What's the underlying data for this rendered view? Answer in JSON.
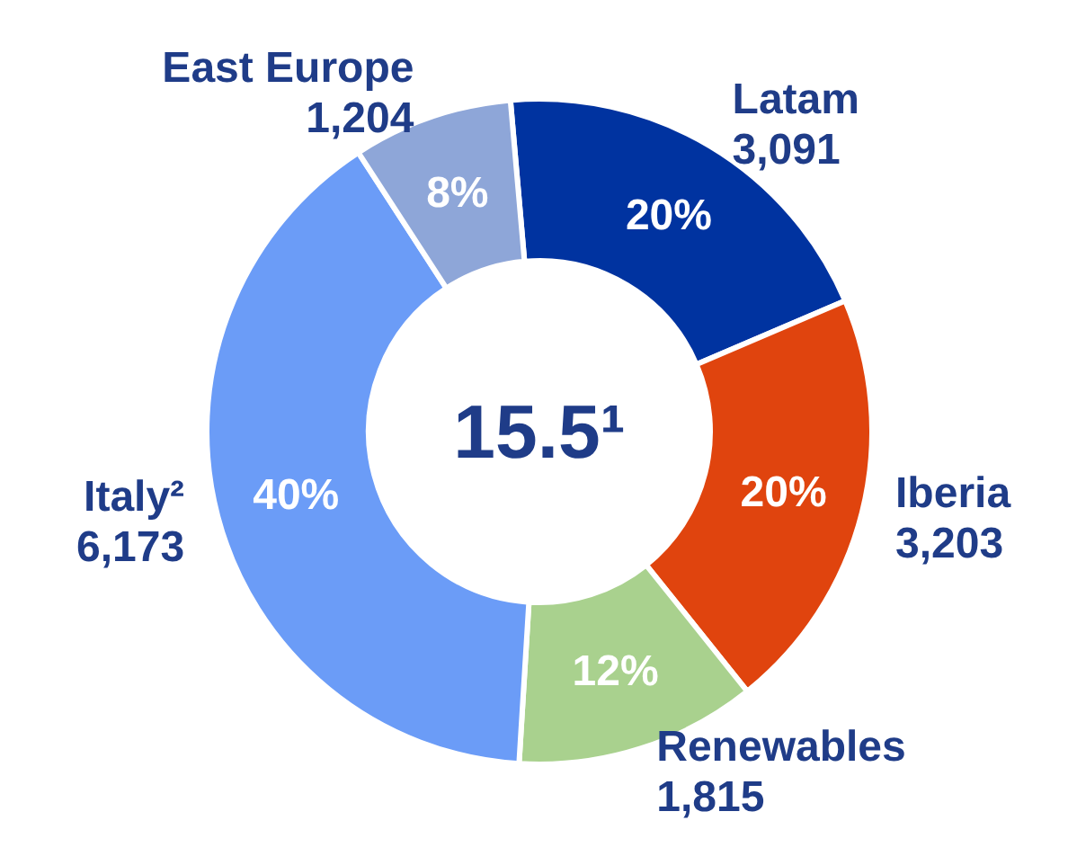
{
  "chart_data": {
    "type": "donut",
    "categories": [
      "Latam",
      "Iberia",
      "Renewables",
      "Italy²",
      "East Europe"
    ],
    "values": [
      3091,
      3203,
      1815,
      6173,
      1204
    ],
    "colors": [
      "#0033a0",
      "#e0440e",
      "#a9d18e",
      "#6b9cf7",
      "#8ea6d8"
    ],
    "value_labels": [
      "3,091",
      "3,203",
      "1,815",
      "6,173",
      "1,204"
    ],
    "annotations": [
      "15.5¹",
      {
        "text": "20%",
        "x": "Latam"
      },
      {
        "text": "20%",
        "x": "Iberia"
      },
      {
        "text": "12%",
        "x": "Renewables"
      },
      {
        "text": "40%",
        "x": "Italy²"
      },
      {
        "text": "8%",
        "x": "East Europe"
      }
    ]
  }
}
